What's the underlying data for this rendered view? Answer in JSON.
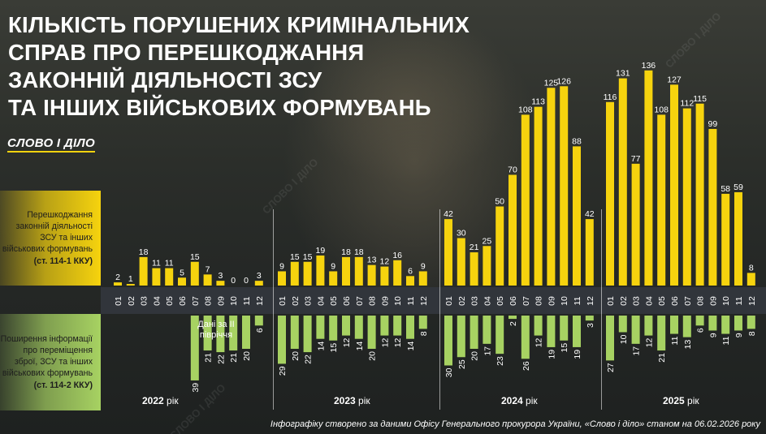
{
  "title_lines": [
    "КІЛЬКІСТЬ ПОРУШЕНИХ КРИМІНАЛЬНИХ",
    "СПРАВ ПРО ПЕРЕШКОДЖАННЯ",
    "ЗАКОННІЙ ДІЯЛЬНОСТІ ЗСУ",
    "ТА ІНШИХ ВІЙСЬКОВИХ ФОРМУВАНЬ"
  ],
  "logo": "СЛОВО І ДІЛО",
  "panel_top": {
    "desc": "Перешкоджання законній діяльності ЗСУ та інших військових формувань",
    "code": "(ст. 114-1 ККУ)"
  },
  "panel_bottom": {
    "desc": "Поширення інформації про переміщення зброї, ЗСУ та інших військових формувань",
    "code": "(ст. 114-2 ККУ)"
  },
  "note": "Дані за ІІ півріччя",
  "years": [
    {
      "num": "2022",
      "suffix": " рік"
    },
    {
      "num": "2023",
      "suffix": " рік"
    },
    {
      "num": "2024",
      "suffix": " рік"
    },
    {
      "num": "2025",
      "suffix": " рік"
    }
  ],
  "source": "Інфографіку створено за даними Офісу Генерального прокурора України, «Слово і діло» станом на 06.02.2026 року",
  "colors": {
    "yellow": "#f6d30e",
    "green": "#a7d262",
    "background": "#2a2d2a",
    "axis_band": "#31353b"
  },
  "chart_data": {
    "type": "bar",
    "categories": [
      "01",
      "02",
      "03",
      "04",
      "05",
      "06",
      "07",
      "08",
      "09",
      "10",
      "11",
      "12"
    ],
    "groups": [
      {
        "year": "2022",
        "series": [
          {
            "name": "ст. 114-1 ККУ",
            "values": [
              2,
              1,
              18,
              11,
              11,
              5,
              15,
              7,
              3,
              0,
              0,
              3
            ]
          },
          {
            "name": "ст. 114-2 ККУ",
            "values": [
              null,
              null,
              null,
              null,
              null,
              null,
              39,
              21,
              22,
              21,
              20,
              6
            ]
          }
        ]
      },
      {
        "year": "2023",
        "series": [
          {
            "name": "ст. 114-1 ККУ",
            "values": [
              9,
              15,
              15,
              19,
              9,
              18,
              18,
              13,
              12,
              16,
              6,
              9
            ]
          },
          {
            "name": "ст. 114-2 ККУ",
            "values": [
              29,
              20,
              22,
              14,
              15,
              12,
              14,
              20,
              12,
              12,
              14,
              8
            ]
          }
        ]
      },
      {
        "year": "2024",
        "series": [
          {
            "name": "ст. 114-1 ККУ",
            "values": [
              42,
              30,
              21,
              25,
              50,
              70,
              108,
              113,
              125,
              126,
              88,
              42
            ]
          },
          {
            "name": "ст. 114-2 ККУ",
            "values": [
              30,
              25,
              20,
              17,
              23,
              2,
              26,
              12,
              19,
              15,
              19,
              3
            ]
          }
        ]
      },
      {
        "year": "2025",
        "series": [
          {
            "name": "ст. 114-1 ККУ",
            "values": [
              116,
              131,
              77,
              136,
              108,
              127,
              112,
              115,
              99,
              58,
              59,
              8
            ]
          },
          {
            "name": "ст. 114-2 ККУ",
            "values": [
              27,
              10,
              17,
              12,
              21,
              11,
              13,
              6,
              9,
              11,
              9,
              8
            ]
          }
        ]
      }
    ]
  }
}
